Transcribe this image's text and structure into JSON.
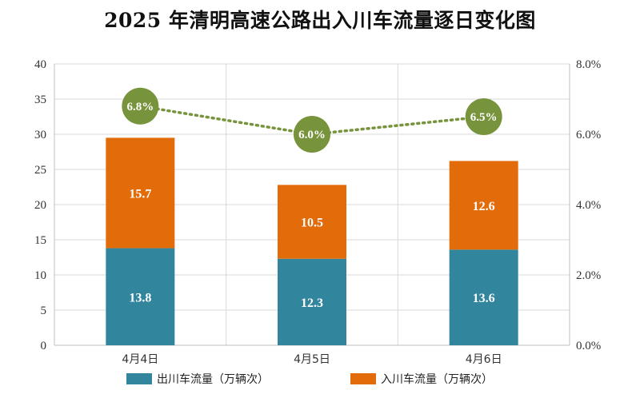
{
  "colors": {
    "outbound": "#31859c",
    "inbound": "#e36c0a",
    "growth": "#77933c",
    "grid": "#d9d9d9",
    "axis": "#bfbfbf"
  },
  "chart_data": {
    "type": "bar",
    "stacked": true,
    "title": "2025 年清明高速公路出入川车流量逐日变化图",
    "categories": [
      "4月4日",
      "4月5日",
      "4月6日"
    ],
    "series": [
      {
        "name": "出川车流量（万辆次）",
        "values": [
          13.8,
          12.3,
          13.6
        ],
        "labels": [
          "13.8",
          "12.3",
          "13.6"
        ]
      },
      {
        "name": "入川车流量（万辆次）",
        "values": [
          15.7,
          10.5,
          12.6
        ],
        "labels": [
          "15.7",
          "10.5",
          "12.6"
        ]
      }
    ],
    "line_series": {
      "type": "line",
      "axis": "right",
      "values": [
        6.8,
        6.0,
        6.5
      ],
      "labels": [
        "6.8%",
        "6.0%",
        "6.5%"
      ]
    },
    "ylim": [
      0,
      40
    ],
    "yticks": [
      "0",
      "5",
      "10",
      "15",
      "20",
      "25",
      "30",
      "35",
      "40"
    ],
    "y2lim": [
      0,
      8
    ],
    "y2ticks": [
      "0.0%",
      "2.0%",
      "4.0%",
      "6.0%",
      "8.0%"
    ],
    "grid": true,
    "legend_position": "bottom"
  }
}
